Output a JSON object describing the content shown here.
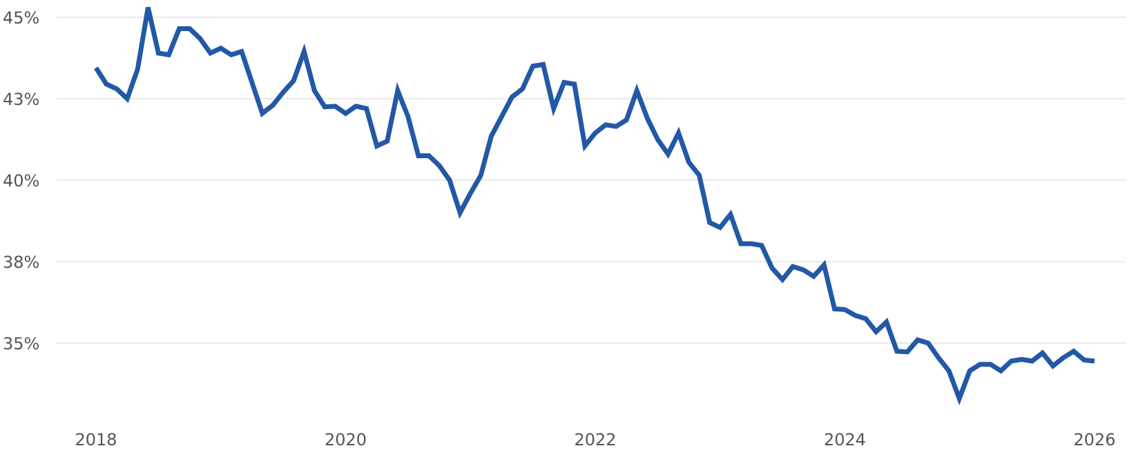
{
  "chart_data": {
    "type": "line",
    "title": "",
    "xlabel": "",
    "ylabel": "",
    "grid": true,
    "legend": "none",
    "xlim": [
      2018,
      2026
    ],
    "ylim": [
      31.5,
      45.5
    ],
    "x_ticks": [
      {
        "value": 2018,
        "label": "2018"
      },
      {
        "value": 2020,
        "label": "2020"
      },
      {
        "value": 2022,
        "label": "2022"
      },
      {
        "value": 2024,
        "label": "2024"
      },
      {
        "value": 2026,
        "label": "2026"
      }
    ],
    "y_ticks": [
      {
        "value": 35,
        "label": "35%"
      },
      {
        "value": 37.5,
        "label": "38%"
      },
      {
        "value": 40,
        "label": "40%"
      },
      {
        "value": 42.5,
        "label": "43%"
      },
      {
        "value": 45,
        "label": "45%"
      }
    ],
    "series": [
      {
        "color": "#2358a6",
        "x": [
          2018.0,
          2018.083,
          2018.167,
          2018.25,
          2018.333,
          2018.417,
          2018.5,
          2018.583,
          2018.667,
          2018.75,
          2018.833,
          2018.917,
          2019.0,
          2019.083,
          2019.167,
          2019.25,
          2019.333,
          2019.417,
          2019.5,
          2019.583,
          2019.667,
          2019.75,
          2019.833,
          2019.917,
          2020.0,
          2020.083,
          2020.167,
          2020.25,
          2020.333,
          2020.417,
          2020.5,
          2020.583,
          2020.667,
          2020.75,
          2020.833,
          2020.917,
          2021.0,
          2021.083,
          2021.167,
          2021.25,
          2021.333,
          2021.417,
          2021.5,
          2021.583,
          2021.667,
          2021.75,
          2021.833,
          2021.917,
          2022.0,
          2022.083,
          2022.167,
          2022.25,
          2022.333,
          2022.417,
          2022.5,
          2022.583,
          2022.667,
          2022.75,
          2022.833,
          2022.917,
          2023.0,
          2023.083,
          2023.167,
          2023.25,
          2023.333,
          2023.417,
          2023.5,
          2023.583,
          2023.667,
          2023.75,
          2023.833,
          2023.917,
          2024.0,
          2024.083,
          2024.167,
          2024.25,
          2024.333,
          2024.417,
          2024.5,
          2024.583,
          2024.667,
          2024.75,
          2024.833,
          2024.917,
          2025.0,
          2025.083,
          2025.167,
          2025.25,
          2025.333,
          2025.417,
          2025.5,
          2025.583,
          2025.667,
          2025.75,
          2025.833,
          2025.917,
          2026.0
        ],
        "values": [
          43.45,
          42.95,
          42.8,
          42.5,
          43.4,
          45.3,
          43.9,
          43.85,
          44.65,
          44.65,
          44.35,
          43.9,
          44.05,
          43.85,
          43.95,
          43.0,
          42.05,
          42.3,
          42.7,
          43.05,
          43.95,
          42.75,
          42.25,
          42.27,
          42.05,
          42.27,
          42.2,
          41.05,
          41.2,
          42.75,
          41.95,
          40.75,
          40.75,
          40.45,
          40.0,
          39.0,
          39.6,
          40.15,
          41.35,
          41.95,
          42.55,
          42.8,
          43.5,
          43.55,
          42.2,
          43.0,
          42.95,
          41.05,
          41.45,
          41.7,
          41.65,
          41.85,
          42.75,
          41.9,
          41.25,
          40.8,
          41.45,
          40.55,
          40.15,
          38.7,
          38.55,
          38.95,
          38.05,
          38.05,
          38.0,
          37.3,
          36.95,
          37.35,
          37.25,
          37.05,
          37.4,
          36.05,
          36.03,
          35.85,
          35.75,
          35.35,
          35.65,
          34.75,
          34.73,
          35.1,
          35.0,
          34.55,
          34.15,
          33.3,
          34.15,
          34.35,
          34.35,
          34.15,
          34.45,
          34.5,
          34.45,
          34.7,
          34.3,
          34.55,
          34.75,
          34.48,
          34.45
        ]
      }
    ]
  }
}
